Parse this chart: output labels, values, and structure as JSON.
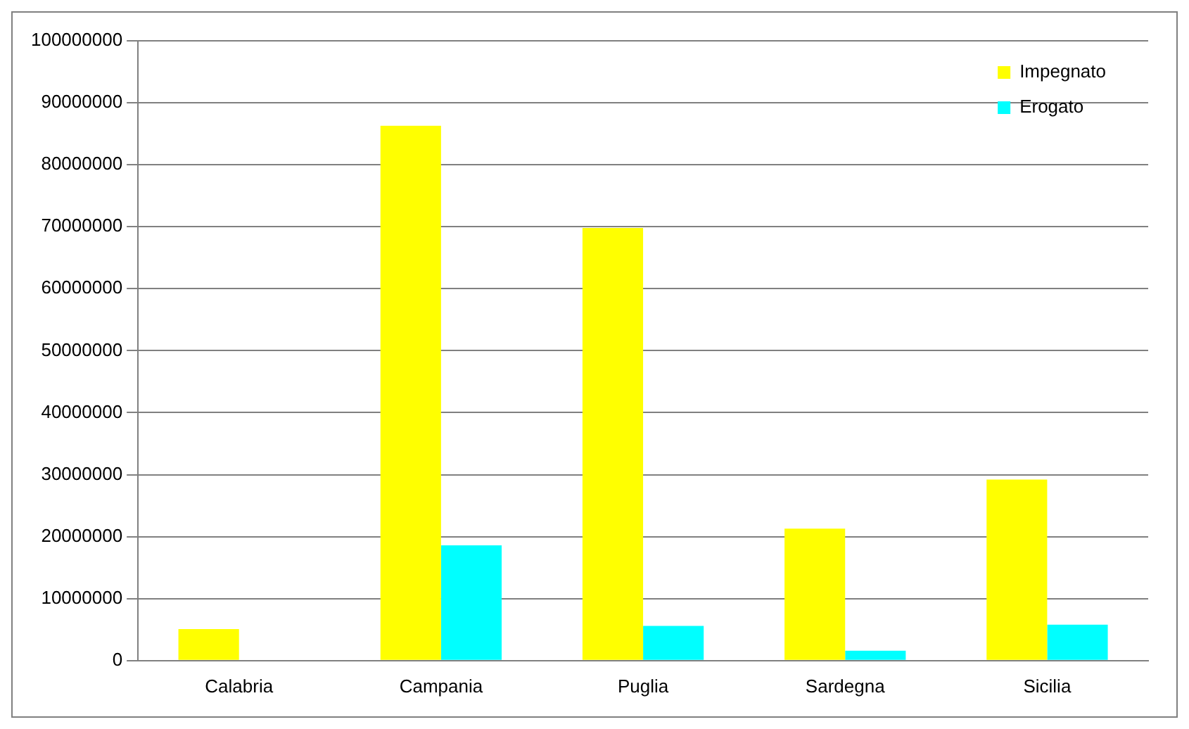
{
  "chart_data": {
    "type": "bar",
    "categories": [
      "Calabria",
      "Campania",
      "Puglia",
      "Sardegna",
      "Sicilia"
    ],
    "series": [
      {
        "name": "Impegnato",
        "color": "#ffff00",
        "values": [
          5100000,
          86300000,
          69800000,
          21300000,
          29200000
        ]
      },
      {
        "name": "Erogato",
        "color": "#00ffff",
        "values": [
          0,
          18600000,
          5600000,
          1600000,
          5800000
        ]
      }
    ],
    "ylim": [
      0,
      100000000
    ],
    "yticks": [
      0,
      10000000,
      20000000,
      30000000,
      40000000,
      50000000,
      60000000,
      70000000,
      80000000,
      90000000,
      100000000
    ],
    "grid": "y",
    "legend": "top right"
  }
}
